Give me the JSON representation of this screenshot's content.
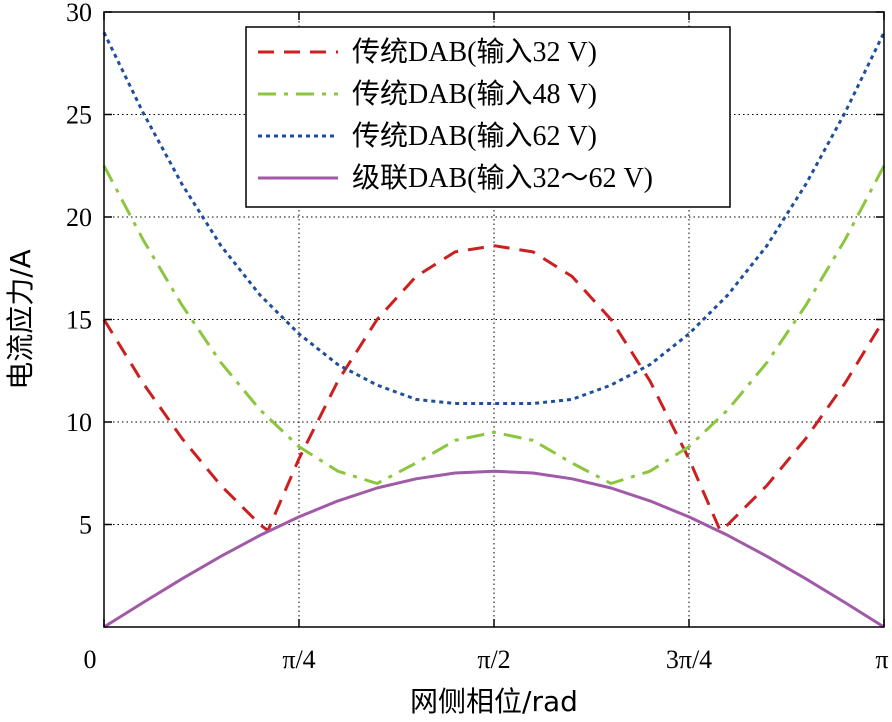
{
  "chart_data": {
    "type": "line",
    "xlabel": "网侧相位/rad",
    "ylabel": "电流应力/A",
    "xlim": [
      0,
      3.14159
    ],
    "ylim": [
      0,
      30
    ],
    "x_ticks": [
      {
        "value": 0,
        "label": "0"
      },
      {
        "value": 0.7854,
        "label": "π/4"
      },
      {
        "value": 1.5708,
        "label": "π/2"
      },
      {
        "value": 2.3562,
        "label": "3π/4"
      },
      {
        "value": 3.14159,
        "label": "π"
      }
    ],
    "y_ticks": [
      {
        "value": 5,
        "label": "5"
      },
      {
        "value": 10,
        "label": "10"
      },
      {
        "value": 15,
        "label": "15"
      },
      {
        "value": 20,
        "label": "20"
      },
      {
        "value": 25,
        "label": "25"
      },
      {
        "value": 30,
        "label": "30"
      }
    ],
    "grid": true,
    "legend_position": "top-right",
    "series": [
      {
        "name": "传统DAB(输入32 V)",
        "color": "#cc1f1f",
        "dash": "dashed",
        "x": [
          0,
          0.157,
          0.314,
          0.471,
          0.628,
          0.66,
          0.785,
          0.942,
          1.1,
          1.257,
          1.414,
          1.571,
          1.728,
          1.885,
          2.042,
          2.199,
          2.356,
          2.482,
          2.513,
          2.67,
          2.827,
          2.985,
          3.14159
        ],
        "y": [
          15.0,
          11.9,
          9.2,
          6.9,
          5.0,
          4.7,
          8.2,
          12.0,
          15.0,
          17.1,
          18.3,
          18.6,
          18.3,
          17.1,
          15.0,
          12.0,
          8.2,
          4.7,
          5.0,
          6.9,
          9.2,
          11.9,
          15.0
        ]
      },
      {
        "name": "传统DAB(输入48 V)",
        "color": "#8cc63f",
        "dash": "dashdot",
        "x": [
          0,
          0.157,
          0.314,
          0.471,
          0.628,
          0.785,
          0.942,
          1.1,
          1.257,
          1.414,
          1.571,
          1.728,
          1.885,
          2.042,
          2.199,
          2.356,
          2.513,
          2.67,
          2.827,
          2.985,
          3.14159
        ],
        "y": [
          22.5,
          18.9,
          15.7,
          12.9,
          10.6,
          8.8,
          7.6,
          7.0,
          8.0,
          9.1,
          9.5,
          9.1,
          8.0,
          7.0,
          7.6,
          8.8,
          10.6,
          12.9,
          15.7,
          18.9,
          22.5
        ]
      },
      {
        "name": "传统DAB(输入62 V)",
        "color": "#1f4e9c",
        "dash": "dotted",
        "x": [
          0,
          0.157,
          0.314,
          0.471,
          0.628,
          0.785,
          0.942,
          1.1,
          1.257,
          1.414,
          1.571,
          1.728,
          1.885,
          2.042,
          2.199,
          2.356,
          2.513,
          2.67,
          2.827,
          2.985,
          3.14159
        ],
        "y": [
          29.0,
          25.1,
          21.6,
          18.6,
          16.2,
          14.3,
          12.8,
          11.8,
          11.1,
          10.9,
          10.9,
          10.9,
          11.1,
          11.8,
          12.8,
          14.3,
          16.2,
          18.6,
          21.6,
          25.1,
          29.0
        ]
      },
      {
        "name": "级联DAB(输入32～62 V)",
        "color": "#a05aa8",
        "dash": "solid",
        "x": [
          0,
          0.157,
          0.314,
          0.471,
          0.628,
          0.785,
          0.942,
          1.1,
          1.257,
          1.414,
          1.571,
          1.728,
          1.885,
          2.042,
          2.199,
          2.356,
          2.513,
          2.67,
          2.827,
          2.985,
          3.14159
        ],
        "y": [
          0,
          1.19,
          2.35,
          3.45,
          4.47,
          5.37,
          6.15,
          6.78,
          7.23,
          7.51,
          7.6,
          7.51,
          7.23,
          6.78,
          6.15,
          5.37,
          4.47,
          3.45,
          2.35,
          1.19,
          0
        ]
      }
    ]
  }
}
